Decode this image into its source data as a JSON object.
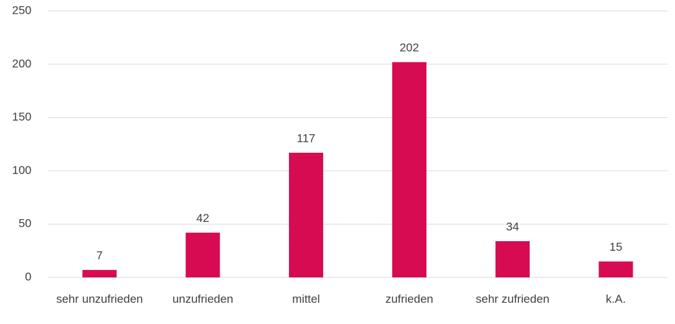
{
  "chart_data": {
    "type": "bar",
    "categories": [
      "sehr unzufrieden",
      "unzufrieden",
      "mittel",
      "zufrieden",
      "sehr zufrieden",
      "k.A."
    ],
    "values": [
      7,
      42,
      117,
      202,
      34,
      15
    ],
    "color": "#d60b52",
    "ylim": [
      0,
      250
    ],
    "yticks": [
      0,
      50,
      100,
      150,
      200,
      250
    ],
    "grid": true
  }
}
